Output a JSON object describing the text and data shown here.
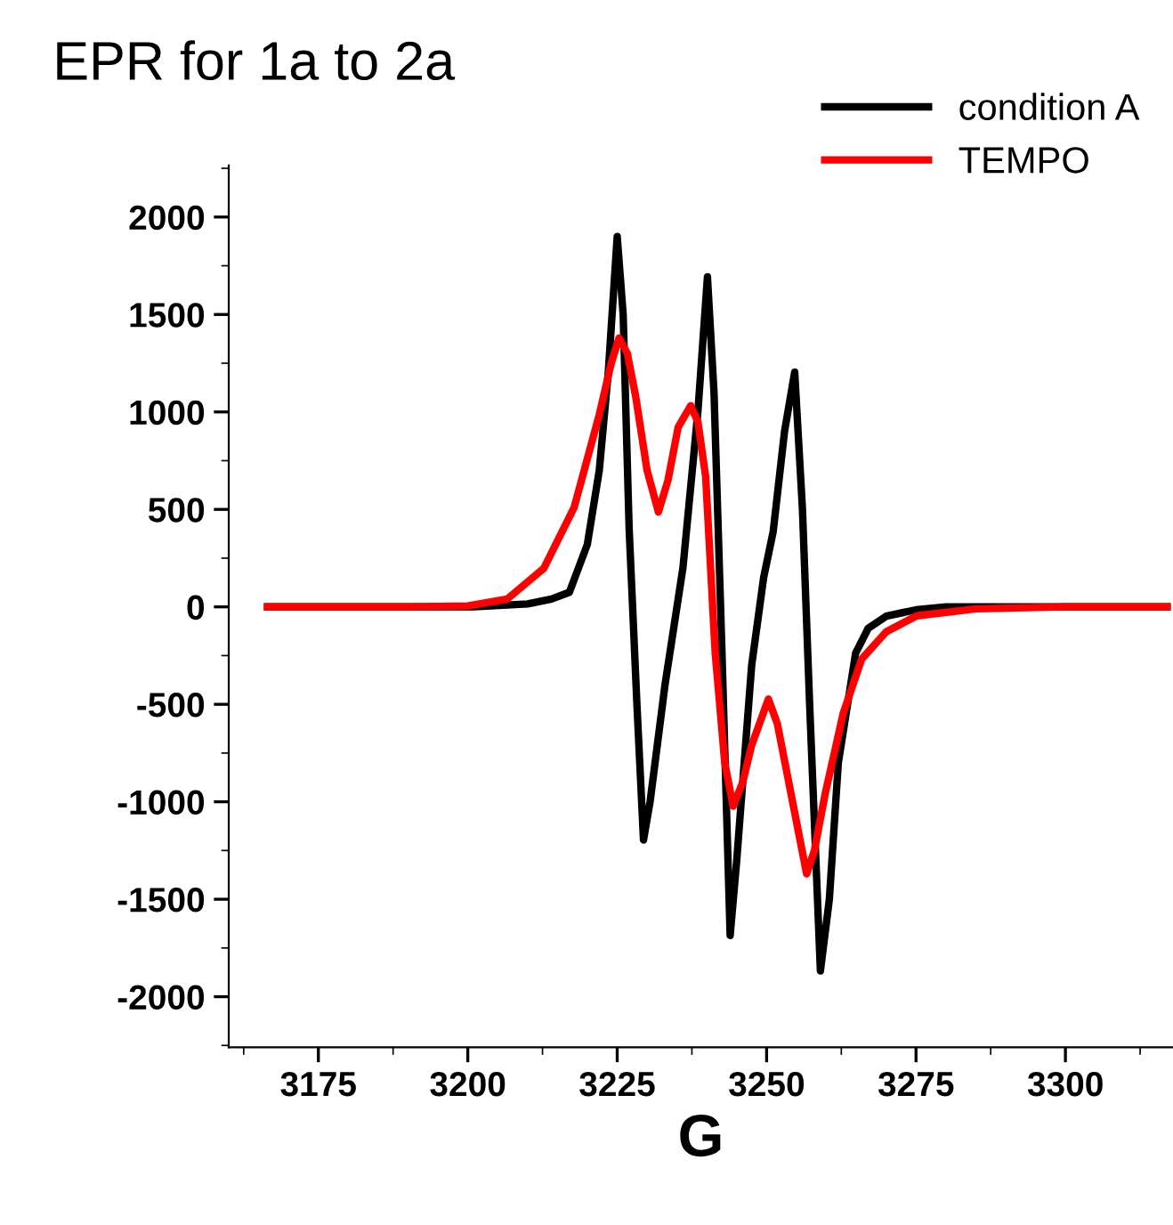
{
  "chart_data": {
    "type": "line",
    "title": "EPR for 1a to 2a",
    "xlabel": "G",
    "xlim": [
      3160,
      3318
    ],
    "xticks": [
      3175,
      3200,
      3225,
      3250,
      3275,
      3300
    ],
    "ylim": [
      -2260,
      2265
    ],
    "yticks": [
      -2000,
      -1500,
      -1000,
      -500,
      0,
      500,
      1000,
      1500,
      2000
    ],
    "grid": false,
    "legend": "top right",
    "line_style": "solid",
    "marker": "none",
    "series": [
      {
        "name": "condition A",
        "color": "#000000",
        "x": [
          3166.5,
          3190,
          3201,
          3210,
          3214,
          3217,
          3220,
          3222,
          3223.5,
          3225,
          3226,
          3227,
          3228.3,
          3229.4,
          3230.5,
          3233,
          3236,
          3238.5,
          3240.1,
          3241.2,
          3242.5,
          3243.9,
          3245,
          3247.5,
          3249.5,
          3251.1,
          3253,
          3254.7,
          3256,
          3257.2,
          3259,
          3260.5,
          3262,
          3264.9,
          3267,
          3270,
          3275,
          3280,
          3300,
          3317
        ],
        "values": [
          0,
          0,
          0,
          15,
          40,
          75,
          320,
          700,
          1200,
          1900,
          1500,
          400,
          -500,
          -1196,
          -1000,
          -400,
          200,
          1000,
          1693,
          1100,
          -200,
          -1686,
          -1300,
          -300,
          150,
          386,
          900,
          1205,
          500,
          -500,
          -1868,
          -1500,
          -800,
          -237,
          -110,
          -48,
          -15,
          0,
          0,
          0
        ]
      },
      {
        "name": "TEMPO",
        "color": "#ff0000",
        "x": [
          3166.5,
          3190,
          3200,
          3206.6,
          3212.7,
          3217.8,
          3222,
          3224,
          3225.3,
          3226.7,
          3228.1,
          3230,
          3231.9,
          3233.5,
          3235.2,
          3237.3,
          3238.5,
          3239.8,
          3241.4,
          3243,
          3244.4,
          3246,
          3247.5,
          3250.3,
          3251.8,
          3253.1,
          3254.7,
          3256.7,
          3258,
          3259.8,
          3262.8,
          3265.9,
          3270,
          3275.1,
          3285,
          3300,
          3317
        ],
        "values": [
          0,
          0,
          5,
          40,
          197,
          511,
          986,
          1250,
          1379,
          1300,
          1078,
          700,
          487,
          650,
          922,
          1032,
          950,
          669,
          -237,
          -800,
          -1023,
          -900,
          -710,
          -473,
          -600,
          -804,
          -1056,
          -1370,
          -1250,
          -959,
          -548,
          -268,
          -128,
          -46,
          -10,
          0,
          0
        ]
      }
    ]
  }
}
